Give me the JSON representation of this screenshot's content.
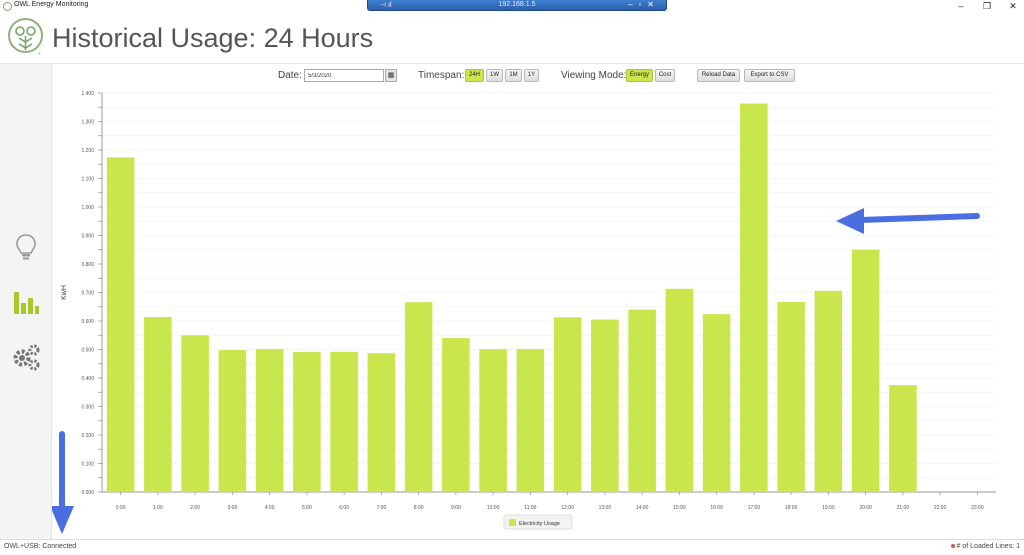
{
  "window": {
    "title": "OWL Energy Monitoring",
    "remote_session_title": "192.168.1.5",
    "controls": [
      "–",
      "❐",
      "✕"
    ]
  },
  "header": {
    "title": "Historical Usage: 24 Hours"
  },
  "toolbar": {
    "date_label": "Date:",
    "date_value": "5/3/2020",
    "timespan_label": "Timespan:",
    "timespan_options": [
      "24H",
      "1W",
      "1M",
      "1Y"
    ],
    "timespan_selected": "24H",
    "viewing_mode_label": "Viewing Mode:",
    "viewing_modes": [
      "Energy",
      "Cost"
    ],
    "viewing_mode_selected": "Energy",
    "reload_label": "Reload Data",
    "export_label": "Export to CSV"
  },
  "sidebar": {
    "items": [
      {
        "icon": "lightbulb-icon"
      },
      {
        "icon": "bar-chart-icon",
        "active": true
      },
      {
        "icon": "gears-icon"
      }
    ]
  },
  "status": {
    "left": "OWL+USB: Connected",
    "right": "# of Loaded Lines: 1"
  },
  "colors": {
    "accent": "#c9e64c",
    "bar": "#c9e64c",
    "annotation_arrow": "#4a6ee0"
  },
  "chart_data": {
    "type": "bar",
    "ylabel": "KwH",
    "xlabel": "",
    "categories": [
      "0:00",
      "1:00",
      "2:00",
      "3:00",
      "4:00",
      "5:00",
      "6:00",
      "7:00",
      "8:00",
      "9:00",
      "10:00",
      "11:00",
      "12:00",
      "13:00",
      "14:00",
      "15:00",
      "16:00",
      "17:00",
      "18:00",
      "19:00",
      "20:00",
      "21:00",
      "22:00",
      "23:00"
    ],
    "series": [
      {
        "name": "Electricity Usage",
        "values": [
          1.174,
          0.614,
          0.55,
          0.498,
          0.502,
          0.491,
          0.492,
          0.487,
          0.666,
          0.54,
          0.501,
          0.502,
          0.613,
          0.605,
          0.64,
          0.713,
          0.624,
          1.363,
          0.667,
          0.706,
          0.85,
          0.375,
          0,
          0
        ]
      }
    ],
    "ylim": [
      0,
      1.4
    ],
    "yticks": [
      "0.000",
      "0.050",
      "0.100",
      "0.150",
      "0.200",
      "0.250",
      "0.300",
      "0.350",
      "0.400",
      "0.450",
      "0.500",
      "0.550",
      "0.600",
      "0.650",
      "0.700",
      "0.750",
      "0.800",
      "0.850",
      "0.900",
      "0.950",
      "1.000",
      "1.050",
      "1.100",
      "1.150",
      "1.200",
      "1.250",
      "1.300",
      "1.350",
      "1.400"
    ],
    "legend_position": "bottom",
    "grid": true
  }
}
